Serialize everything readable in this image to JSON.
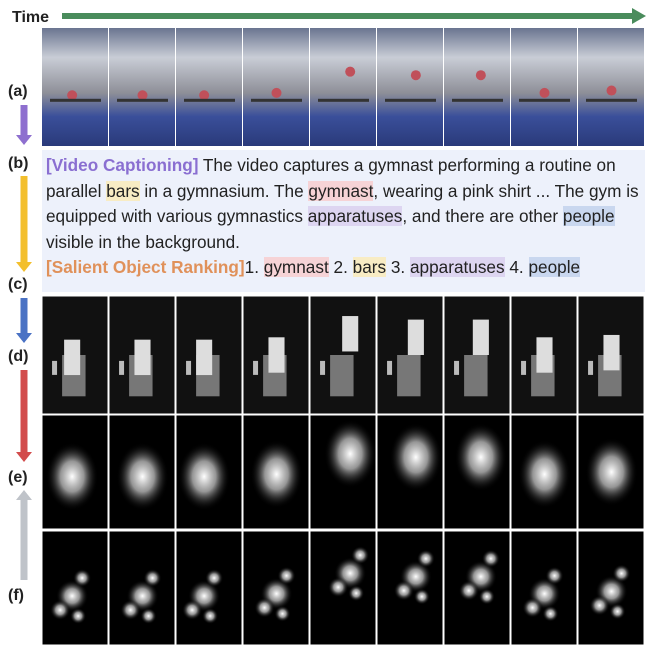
{
  "time_label": "Time",
  "row_labels": [
    "(a)",
    "(b)",
    "(c)",
    "(d)",
    "(e)",
    "(f)"
  ],
  "caption": {
    "tag": "[Video Captioning]",
    "segments": [
      " The video captures a gymnast performing a routine on parallel ",
      "bars",
      " in a gymnasium. The ",
      "gymnast",
      ", wearing a pink shirt ... The gym is equipped with various gymnastics ",
      "apparatuses",
      ", and there are other ",
      "people",
      " visible in the background."
    ]
  },
  "ranking": {
    "tag": "[Salient Object Ranking]",
    "items": [
      {
        "rank": "1.",
        "label": "gymnast"
      },
      {
        "rank": "2.",
        "label": "bars"
      },
      {
        "rank": "3.",
        "label": "apparatuses"
      },
      {
        "rank": "4.",
        "label": "people"
      }
    ]
  }
}
